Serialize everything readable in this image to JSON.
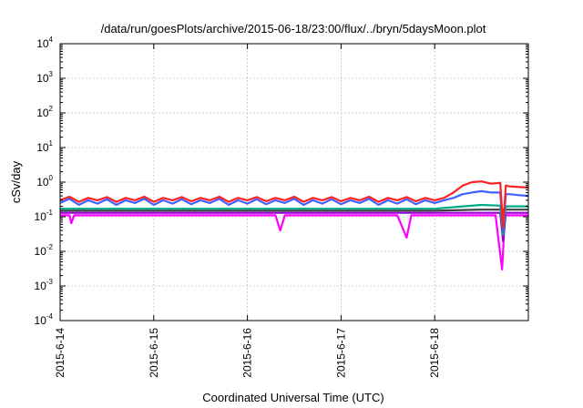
{
  "chart_data": {
    "type": "line",
    "title": "/data/run/goesPlots/archive/2015-06-18/23:00/flux/../bryn/5daysMoon.plot",
    "xlabel": "Coordinated Universal Time (UTC)",
    "ylabel": "cSv/day",
    "yscale": "log",
    "ylim": [
      0.0001,
      10000
    ],
    "xlim": [
      0,
      5
    ],
    "grid": true,
    "x_ticks": [
      {
        "value": 0,
        "label": "2015-6-14"
      },
      {
        "value": 1,
        "label": "2015-6-15"
      },
      {
        "value": 2,
        "label": "2015-6-16"
      },
      {
        "value": 3,
        "label": "2015-6-17"
      },
      {
        "value": 4,
        "label": "2015-6-18"
      }
    ],
    "y_ticks": [
      {
        "value": 0.0001,
        "base": "10",
        "exp": "-4"
      },
      {
        "value": 0.001,
        "base": "10",
        "exp": "-3"
      },
      {
        "value": 0.01,
        "base": "10",
        "exp": "-2"
      },
      {
        "value": 0.1,
        "base": "10",
        "exp": "-1"
      },
      {
        "value": 1,
        "base": "10",
        "exp": "0"
      },
      {
        "value": 10,
        "base": "10",
        "exp": "1"
      },
      {
        "value": 100,
        "base": "10",
        "exp": "2"
      },
      {
        "value": 1000,
        "base": "10",
        "exp": "3"
      },
      {
        "value": 10000,
        "base": "10",
        "exp": "4"
      }
    ],
    "series": [
      {
        "color": "#ff00ff",
        "x": [
          0,
          0.1,
          0.12,
          0.15,
          0.3,
          0.6,
          1.0,
          1.4,
          1.8,
          2.0,
          2.3,
          2.35,
          2.4,
          2.8,
          3.2,
          3.6,
          3.7,
          3.75,
          4.0,
          4.3,
          4.65,
          4.72,
          4.75,
          4.8,
          5.0
        ],
        "y": [
          0.11,
          0.11,
          0.065,
          0.11,
          0.11,
          0.11,
          0.11,
          0.11,
          0.11,
          0.11,
          0.11,
          0.04,
          0.11,
          0.11,
          0.11,
          0.11,
          0.025,
          0.11,
          0.11,
          0.11,
          0.11,
          0.003,
          0.11,
          0.11,
          0.11
        ]
      },
      {
        "color": "#9400d3",
        "x": [
          0,
          0.5,
          1.0,
          1.5,
          2.0,
          2.5,
          3.0,
          3.5,
          4.0,
          4.5,
          4.7,
          4.73,
          4.76,
          5.0
        ],
        "y": [
          0.13,
          0.13,
          0.13,
          0.13,
          0.13,
          0.13,
          0.13,
          0.13,
          0.13,
          0.13,
          0.13,
          0.02,
          0.13,
          0.13
        ]
      },
      {
        "color": "#404040",
        "x": [
          0,
          0.5,
          1.0,
          1.5,
          2.0,
          2.5,
          3.0,
          3.5,
          4.0,
          4.5,
          5.0
        ],
        "y": [
          0.15,
          0.15,
          0.15,
          0.15,
          0.15,
          0.15,
          0.15,
          0.15,
          0.15,
          0.16,
          0.16
        ]
      },
      {
        "color": "#00aa88",
        "x": [
          0,
          0.5,
          1.0,
          1.5,
          2.0,
          2.5,
          3.0,
          3.5,
          4.0,
          4.3,
          4.5,
          4.7,
          4.73,
          4.76,
          5.0
        ],
        "y": [
          0.17,
          0.17,
          0.17,
          0.17,
          0.17,
          0.17,
          0.17,
          0.17,
          0.17,
          0.2,
          0.22,
          0.21,
          0.03,
          0.2,
          0.2
        ]
      },
      {
        "color": "#4060ff",
        "x": [
          0,
          0.1,
          0.2,
          0.3,
          0.4,
          0.5,
          0.6,
          0.7,
          0.8,
          0.9,
          1.0,
          1.1,
          1.2,
          1.3,
          1.4,
          1.5,
          1.6,
          1.7,
          1.8,
          1.9,
          2.0,
          2.1,
          2.2,
          2.3,
          2.4,
          2.5,
          2.6,
          2.7,
          2.8,
          2.9,
          3.0,
          3.1,
          3.2,
          3.3,
          3.4,
          3.5,
          3.6,
          3.7,
          3.8,
          3.9,
          4.0,
          4.1,
          4.2,
          4.3,
          4.4,
          4.5,
          4.6,
          4.7,
          4.73,
          4.76,
          4.8,
          4.9,
          5.0
        ],
        "y": [
          0.25,
          0.33,
          0.22,
          0.3,
          0.24,
          0.32,
          0.22,
          0.3,
          0.25,
          0.33,
          0.22,
          0.3,
          0.24,
          0.32,
          0.23,
          0.3,
          0.25,
          0.33,
          0.22,
          0.3,
          0.24,
          0.32,
          0.23,
          0.3,
          0.25,
          0.33,
          0.22,
          0.3,
          0.24,
          0.32,
          0.23,
          0.3,
          0.25,
          0.33,
          0.22,
          0.3,
          0.24,
          0.32,
          0.23,
          0.3,
          0.25,
          0.3,
          0.35,
          0.45,
          0.5,
          0.55,
          0.5,
          0.5,
          0.04,
          0.45,
          0.45,
          0.42,
          0.4
        ]
      },
      {
        "color": "#ff2020",
        "x": [
          0,
          0.1,
          0.2,
          0.3,
          0.4,
          0.5,
          0.6,
          0.7,
          0.8,
          0.9,
          1.0,
          1.1,
          1.2,
          1.3,
          1.4,
          1.5,
          1.6,
          1.7,
          1.8,
          1.9,
          2.0,
          2.1,
          2.2,
          2.3,
          2.4,
          2.5,
          2.6,
          2.7,
          2.8,
          2.9,
          3.0,
          3.1,
          3.2,
          3.3,
          3.4,
          3.5,
          3.6,
          3.7,
          3.8,
          3.9,
          4.0,
          4.1,
          4.2,
          4.3,
          4.4,
          4.5,
          4.6,
          4.7,
          4.73,
          4.76,
          4.8,
          4.9,
          5.0
        ],
        "y": [
          0.3,
          0.38,
          0.27,
          0.35,
          0.3,
          0.37,
          0.27,
          0.35,
          0.3,
          0.38,
          0.27,
          0.35,
          0.3,
          0.37,
          0.28,
          0.35,
          0.3,
          0.38,
          0.27,
          0.35,
          0.3,
          0.37,
          0.28,
          0.35,
          0.3,
          0.38,
          0.27,
          0.35,
          0.3,
          0.37,
          0.28,
          0.35,
          0.3,
          0.38,
          0.27,
          0.35,
          0.3,
          0.37,
          0.28,
          0.35,
          0.3,
          0.35,
          0.5,
          0.8,
          1.0,
          1.05,
          0.9,
          0.95,
          0.05,
          0.8,
          0.75,
          0.72,
          0.7
        ]
      }
    ]
  }
}
